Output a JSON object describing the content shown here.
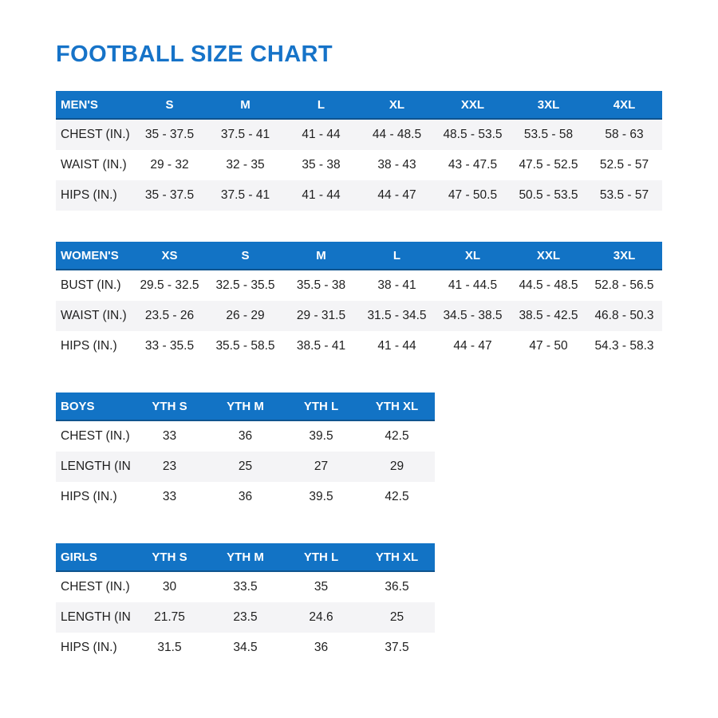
{
  "page": {
    "title": "FOOTBALL SIZE CHART"
  },
  "colors": {
    "title_blue": "#1673c8",
    "header_blue": "#1273c5",
    "header_edge": "#0f548f",
    "stripe_gray": "#f4f4f6",
    "text_dark": "#1f1f1f"
  },
  "tables": [
    {
      "name": "mens",
      "header": [
        "MEN'S",
        "S",
        "M",
        "L",
        "XL",
        "XXL",
        "3XL",
        "4XL"
      ],
      "rows": [
        {
          "label": "CHEST (IN.)",
          "values": [
            "35 - 37.5",
            "37.5 - 41",
            "41 - 44",
            "44 - 48.5",
            "48.5 - 53.5",
            "53.5 - 58",
            "58 - 63"
          ]
        },
        {
          "label": "WAIST (IN.)",
          "values": [
            "29 - 32",
            "32 - 35",
            "35 - 38",
            "38 - 43",
            "43 - 47.5",
            "47.5 - 52.5",
            "52.5 - 57"
          ]
        },
        {
          "label": "HIPS (IN.)",
          "values": [
            "35 - 37.5",
            "37.5 - 41",
            "41 - 44",
            "44 - 47",
            "47 - 50.5",
            "50.5 - 53.5",
            "53.5 - 57"
          ]
        }
      ]
    },
    {
      "name": "womens",
      "header": [
        "WOMEN'S",
        "XS",
        "S",
        "M",
        "L",
        "XL",
        "XXL",
        "3XL"
      ],
      "rows": [
        {
          "label": "BUST (IN.)",
          "values": [
            "29.5 - 32.5",
            "32.5 - 35.5",
            "35.5 - 38",
            "38 - 41",
            "41 - 44.5",
            "44.5 - 48.5",
            "52.8 - 56.5"
          ]
        },
        {
          "label": "WAIST (IN.)",
          "values": [
            "23.5 - 26",
            "26 - 29",
            "29 - 31.5",
            "31.5 - 34.5",
            "34.5 - 38.5",
            "38.5 - 42.5",
            "46.8 - 50.3"
          ]
        },
        {
          "label": "HIPS (IN.)",
          "values": [
            "33 - 35.5",
            "35.5 - 58.5",
            "38.5 - 41",
            "41 - 44",
            "44 - 47",
            "47 - 50",
            "54.3 - 58.3"
          ]
        }
      ]
    },
    {
      "name": "boys",
      "header": [
        "BOYS",
        "YTH S",
        "YTH M",
        "YTH L",
        "YTH XL"
      ],
      "rows": [
        {
          "label": "CHEST (IN.)",
          "values": [
            "33",
            "36",
            "39.5",
            "42.5"
          ]
        },
        {
          "label": "LENGTH (IN.)",
          "values": [
            "23",
            "25",
            "27",
            "29"
          ]
        },
        {
          "label": "HIPS (IN.)",
          "values": [
            "33",
            "36",
            "39.5",
            "42.5"
          ]
        }
      ]
    },
    {
      "name": "girls",
      "header": [
        "GIRLS",
        "YTH S",
        "YTH M",
        "YTH L",
        "YTH XL"
      ],
      "rows": [
        {
          "label": "CHEST (IN.)",
          "values": [
            "30",
            "33.5",
            "35",
            "36.5"
          ]
        },
        {
          "label": "LENGTH (IN.)",
          "values": [
            "21.75",
            "23.5",
            "24.6",
            "25"
          ]
        },
        {
          "label": "HIPS (IN.)",
          "values": [
            "31.5",
            "34.5",
            "36",
            "37.5"
          ]
        }
      ]
    }
  ]
}
